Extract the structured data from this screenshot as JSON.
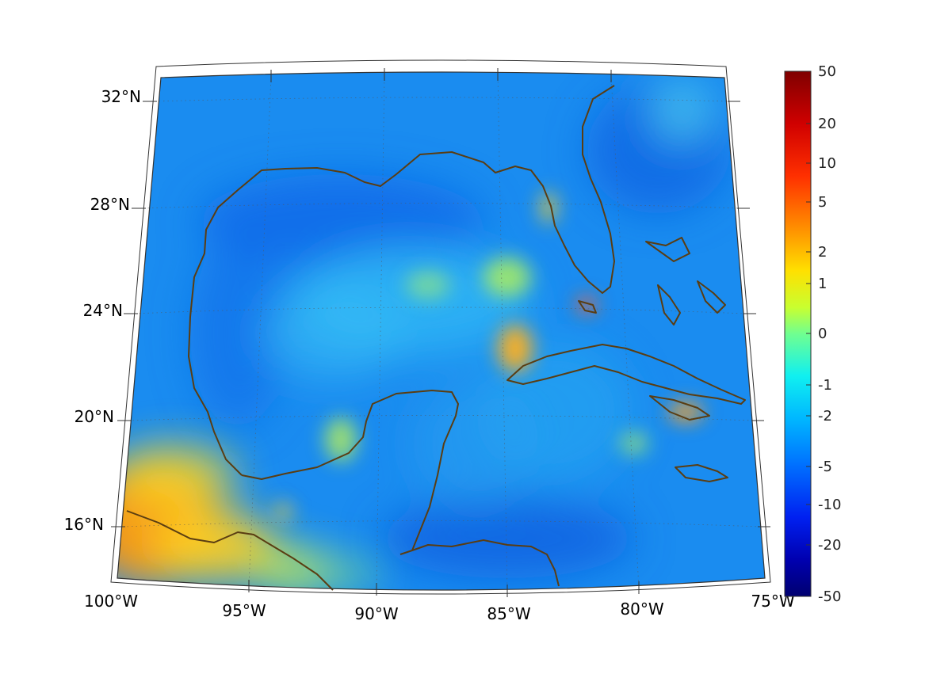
{
  "map": {
    "lon_labels": [
      "100°W",
      "95°W",
      "90°W",
      "85°W",
      "80°W",
      "75°W"
    ],
    "lat_labels": [
      "32°N",
      "28°N",
      "24°N",
      "20°N",
      "16°N"
    ],
    "lon_values": [
      -100,
      -95,
      -90,
      -85,
      -80,
      -75
    ],
    "lat_values": [
      32,
      28,
      24,
      20,
      16
    ],
    "extent": {
      "lon": [
        -100,
        -75
      ],
      "lat": [
        14,
        33
      ]
    },
    "projection": "conic",
    "grid": "dotted",
    "coastline_color": "#5a3d12",
    "field_colormap": "jet"
  },
  "colorbar": {
    "labels": [
      "50",
      "20",
      "10",
      "5",
      "2",
      "1",
      "0",
      "-1",
      "-2",
      "-5",
      "-10",
      "-20",
      "-50"
    ],
    "scale": "symmetric-log",
    "colors": [
      "#800000",
      "#ff0000",
      "#ff8000",
      "#ffff00",
      "#80ff80",
      "#00ffff",
      "#0080ff",
      "#0000ff",
      "#000080"
    ]
  }
}
